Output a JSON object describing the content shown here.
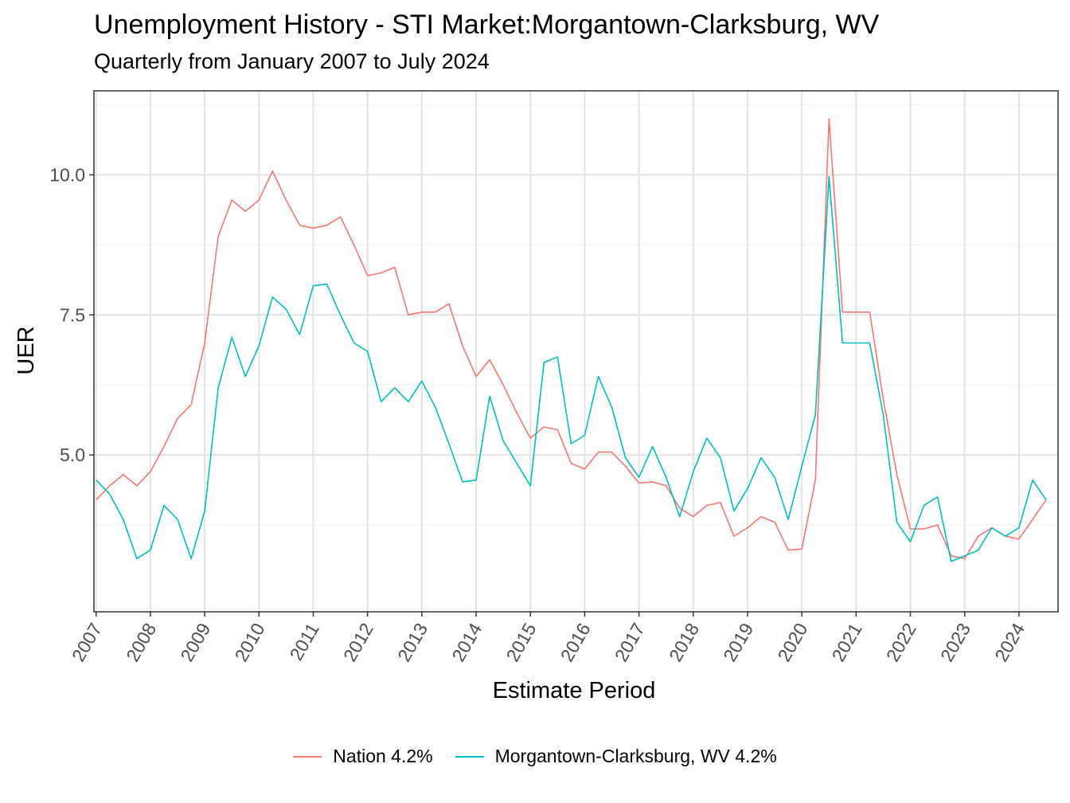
{
  "chart_data": {
    "type": "line",
    "title": "Unemployment History - STI Market:Morgantown-Clarksburg, WV",
    "subtitle": "Quarterly from January 2007 to July 2024",
    "xlabel": "Estimate Period",
    "ylabel": "UER",
    "xlim": [
      2006.96,
      2024.72
    ],
    "ylim": [
      2.2,
      11.5
    ],
    "x_ticks": [
      2007,
      2008,
      2009,
      2010,
      2011,
      2012,
      2013,
      2014,
      2015,
      2016,
      2017,
      2018,
      2019,
      2020,
      2021,
      2022,
      2023,
      2024
    ],
    "x_tick_labels": [
      "2007",
      "2008",
      "2009",
      "2010",
      "2011",
      "2012",
      "2013",
      "2014",
      "2015",
      "2016",
      "2017",
      "2018",
      "2019",
      "2020",
      "2021",
      "2022",
      "2023",
      "2024"
    ],
    "y_ticks": [
      5.0,
      7.5,
      10.0
    ],
    "y_tick_labels": [
      "5.0",
      "7.5",
      "10.0"
    ],
    "grid": true,
    "legend_position": "bottom",
    "x": [
      "2007-01",
      "2007-04",
      "2007-07",
      "2007-10",
      "2008-01",
      "2008-04",
      "2008-07",
      "2008-10",
      "2009-01",
      "2009-04",
      "2009-07",
      "2009-10",
      "2010-01",
      "2010-04",
      "2010-07",
      "2010-10",
      "2011-01",
      "2011-04",
      "2011-07",
      "2011-10",
      "2012-01",
      "2012-04",
      "2012-07",
      "2012-10",
      "2013-01",
      "2013-04",
      "2013-07",
      "2013-10",
      "2014-01",
      "2014-04",
      "2014-07",
      "2014-10",
      "2015-01",
      "2015-04",
      "2015-07",
      "2015-10",
      "2016-01",
      "2016-04",
      "2016-07",
      "2016-10",
      "2017-01",
      "2017-04",
      "2017-07",
      "2017-10",
      "2018-01",
      "2018-04",
      "2018-07",
      "2018-10",
      "2019-01",
      "2019-04",
      "2019-07",
      "2019-10",
      "2020-01",
      "2020-04",
      "2020-07",
      "2020-10",
      "2021-01",
      "2021-04",
      "2021-07",
      "2021-10",
      "2022-01",
      "2022-04",
      "2022-07",
      "2022-10",
      "2023-01",
      "2023-04",
      "2023-07",
      "2023-10",
      "2024-01",
      "2024-04",
      "2024-07"
    ],
    "series": [
      {
        "name": "Nation 4.2%",
        "color": "#F8766D",
        "values": [
          4.2,
          4.45,
          4.65,
          4.45,
          4.7,
          5.15,
          5.65,
          5.9,
          7.0,
          8.9,
          9.55,
          9.35,
          9.55,
          10.07,
          9.55,
          9.1,
          9.05,
          9.1,
          9.25,
          8.75,
          8.2,
          8.25,
          8.35,
          7.5,
          7.55,
          7.55,
          7.7,
          6.95,
          6.4,
          6.7,
          6.25,
          5.75,
          5.3,
          5.5,
          5.45,
          4.85,
          4.75,
          5.05,
          5.05,
          4.8,
          4.5,
          4.52,
          4.45,
          4.05,
          3.9,
          4.1,
          4.15,
          3.55,
          3.7,
          3.9,
          3.8,
          3.3,
          3.32,
          4.55,
          11.0,
          7.55,
          7.55,
          7.55,
          6.0,
          4.65,
          3.68,
          3.68,
          3.75,
          3.2,
          3.15,
          3.55,
          3.7,
          3.55,
          3.5,
          3.85,
          4.2
        ]
      },
      {
        "name": "Morgantown-Clarksburg, WV 4.2%",
        "color": "#00BFC4",
        "values": [
          4.55,
          4.3,
          3.85,
          3.15,
          3.3,
          4.1,
          3.85,
          3.15,
          4.0,
          6.2,
          7.1,
          6.4,
          6.95,
          7.82,
          7.6,
          7.15,
          8.02,
          8.05,
          7.5,
          7.0,
          6.85,
          5.95,
          6.2,
          5.95,
          6.32,
          5.85,
          5.2,
          4.52,
          4.55,
          6.05,
          5.25,
          4.85,
          4.45,
          6.65,
          6.75,
          5.2,
          5.35,
          6.4,
          5.85,
          4.95,
          4.6,
          5.15,
          4.6,
          3.9,
          4.7,
          5.3,
          4.95,
          4.0,
          4.4,
          4.95,
          4.6,
          3.85,
          4.8,
          5.72,
          9.97,
          7.0,
          7.0,
          7.0,
          5.72,
          3.8,
          3.45,
          4.1,
          4.25,
          3.1,
          3.2,
          3.3,
          3.7,
          3.55,
          3.7,
          4.55,
          4.2
        ]
      }
    ]
  }
}
